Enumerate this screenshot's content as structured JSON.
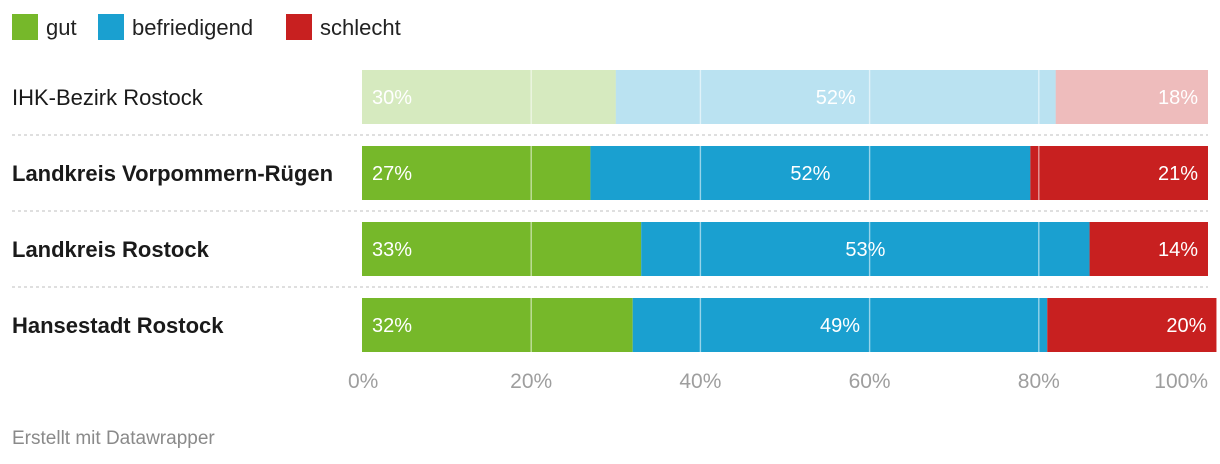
{
  "chart_data": {
    "type": "bar",
    "orientation": "horizontal-stacked",
    "legend": [
      {
        "name": "gut",
        "color": "#76b82a"
      },
      {
        "name": "befriedigend",
        "color": "#1aa0d0"
      },
      {
        "name": "schlecht",
        "color": "#c82020"
      }
    ],
    "legend_position": "top-left",
    "categories": [
      "IHK-Bezirk Rostock",
      "Landkreis Vorpommern-Rügen",
      "Landkreis Rostock",
      "Hansestadt Rostock"
    ],
    "series": [
      {
        "name": "gut",
        "values": [
          30,
          27,
          33,
          32
        ],
        "labels": [
          "30%",
          "27%",
          "33%",
          "32%"
        ]
      },
      {
        "name": "befriedigend",
        "values": [
          52,
          52,
          53,
          49
        ],
        "labels": [
          "52%",
          "52%",
          "53%",
          "49%"
        ]
      },
      {
        "name": "schlecht",
        "values": [
          18,
          21,
          14,
          20
        ],
        "labels": [
          "18%",
          "21%",
          "14%",
          "20%"
        ]
      }
    ],
    "highlighted_rows": [
      false,
      true,
      true,
      true
    ],
    "x_ticks": [
      0,
      20,
      40,
      60,
      80,
      100
    ],
    "x_tick_labels": [
      "0%",
      "20%",
      "40%",
      "60%",
      "80%",
      "100%"
    ],
    "xlim": [
      0,
      100
    ],
    "grid": true
  },
  "footer": {
    "text": "Erstellt mit Datawrapper"
  }
}
